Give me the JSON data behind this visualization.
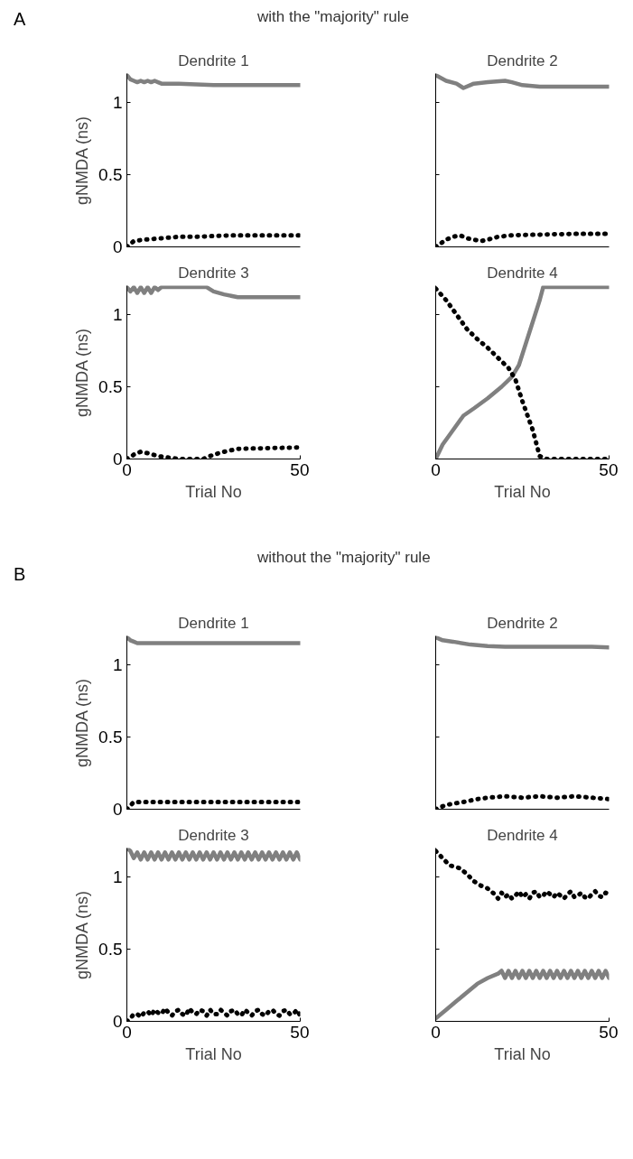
{
  "chart_data": [
    {
      "type": "line",
      "title": "Dendrite 1",
      "ylabel": "gNMDA (ns)",
      "annotations": [
        "A",
        "with the \"majority\" rule"
      ],
      "xlim": [
        0,
        50
      ],
      "ylim": [
        0,
        1.2
      ],
      "yticks": [
        0,
        0.5,
        1
      ],
      "tick_labels": "y",
      "grid": false,
      "series": [
        {
          "color": "#808080",
          "line_style": "solid",
          "x": [
            0,
            1,
            2,
            3,
            4,
            5,
            6,
            7,
            8,
            9,
            10,
            12,
            15,
            20,
            25,
            30,
            35,
            40,
            45,
            50
          ],
          "values": [
            1.19,
            1.16,
            1.15,
            1.14,
            1.15,
            1.14,
            1.15,
            1.14,
            1.15,
            1.14,
            1.13,
            1.13,
            1.13,
            1.125,
            1.12,
            1.12,
            1.12,
            1.12,
            1.12,
            1.12
          ]
        },
        {
          "color": "#000000",
          "line_style": "dotted",
          "x": [
            0,
            2,
            5,
            10,
            15,
            20,
            25,
            30,
            35,
            40,
            45,
            50
          ],
          "values": [
            0.0,
            0.04,
            0.05,
            0.06,
            0.07,
            0.07,
            0.075,
            0.08,
            0.08,
            0.08,
            0.08,
            0.08
          ]
        }
      ]
    },
    {
      "type": "line",
      "title": "Dendrite 2",
      "xlim": [
        0,
        50
      ],
      "ylim": [
        0,
        1.2
      ],
      "yticks": [
        0,
        0.5,
        1
      ],
      "tick_labels": false,
      "grid": false,
      "series": [
        {
          "color": "#808080",
          "line_style": "solid",
          "x": [
            0,
            3,
            6,
            8,
            11,
            15,
            20,
            22,
            25,
            30,
            35,
            40,
            45,
            50
          ],
          "values": [
            1.19,
            1.15,
            1.13,
            1.1,
            1.13,
            1.14,
            1.15,
            1.14,
            1.12,
            1.11,
            1.11,
            1.11,
            1.11,
            1.11
          ]
        },
        {
          "color": "#000000",
          "line_style": "dotted",
          "x": [
            0,
            3,
            5,
            7,
            9,
            11,
            13,
            15,
            18,
            22,
            30,
            40,
            50
          ],
          "values": [
            0.0,
            0.05,
            0.07,
            0.08,
            0.06,
            0.05,
            0.04,
            0.05,
            0.07,
            0.08,
            0.085,
            0.09,
            0.09
          ]
        }
      ]
    },
    {
      "type": "line",
      "title": "Dendrite 3",
      "ylabel": "gNMDA (ns)",
      "xlabel": "Trial No",
      "xlim": [
        0,
        50
      ],
      "ylim": [
        0,
        1.2
      ],
      "xticks": [
        0,
        50
      ],
      "yticks": [
        0,
        0.5,
        1
      ],
      "grid": false,
      "series": [
        {
          "color": "#808080",
          "line_style": "solid",
          "x": [
            0,
            1,
            2,
            3,
            4,
            5,
            6,
            7,
            8,
            9,
            10,
            12,
            15,
            20,
            23,
            25,
            28,
            32,
            40,
            50
          ],
          "values": [
            1.19,
            1.16,
            1.19,
            1.15,
            1.19,
            1.15,
            1.19,
            1.15,
            1.19,
            1.17,
            1.19,
            1.19,
            1.19,
            1.19,
            1.19,
            1.16,
            1.14,
            1.12,
            1.12,
            1.12
          ]
        },
        {
          "color": "#000000",
          "line_style": "dotted",
          "x": [
            0,
            2,
            4,
            6,
            9,
            12,
            15,
            22,
            25,
            28,
            32,
            40,
            50
          ],
          "values": [
            0.0,
            0.03,
            0.05,
            0.04,
            0.02,
            0.01,
            0.0,
            0.0,
            0.03,
            0.05,
            0.07,
            0.075,
            0.08
          ]
        }
      ]
    },
    {
      "type": "line",
      "title": "Dendrite 4",
      "xlabel": "Trial No",
      "xlim": [
        0,
        50
      ],
      "ylim": [
        0,
        1.2
      ],
      "xticks": [
        0,
        50
      ],
      "yticks": [
        0,
        0.5,
        1
      ],
      "tick_labels": "x",
      "grid": false,
      "series": [
        {
          "color": "#808080",
          "line_style": "solid",
          "x": [
            0,
            2,
            5,
            8,
            11,
            15,
            19,
            22,
            24,
            26,
            28,
            30,
            31,
            40,
            50
          ],
          "values": [
            0.0,
            0.1,
            0.2,
            0.3,
            0.35,
            0.42,
            0.5,
            0.57,
            0.65,
            0.8,
            0.95,
            1.1,
            1.19,
            1.19,
            1.19
          ]
        },
        {
          "color": "#000000",
          "line_style": "dotted",
          "x": [
            0,
            3,
            6,
            9,
            12,
            15,
            18,
            21,
            23,
            25,
            28,
            30,
            32,
            40,
            50
          ],
          "values": [
            1.18,
            1.1,
            1.0,
            0.9,
            0.83,
            0.77,
            0.7,
            0.63,
            0.55,
            0.4,
            0.2,
            0.02,
            0.0,
            0.0,
            0.0
          ]
        }
      ]
    },
    {
      "type": "line",
      "title": "Dendrite 1",
      "ylabel": "gNMDA (ns)",
      "annotations": [
        "B",
        "without the \"majority\" rule"
      ],
      "xlim": [
        0,
        50
      ],
      "ylim": [
        0,
        1.2
      ],
      "yticks": [
        0,
        0.5,
        1
      ],
      "tick_labels": "y",
      "grid": false,
      "series": [
        {
          "color": "#808080",
          "line_style": "solid",
          "x": [
            0,
            1,
            2,
            3,
            5,
            10,
            20,
            30,
            40,
            50
          ],
          "values": [
            1.19,
            1.17,
            1.16,
            1.15,
            1.15,
            1.15,
            1.15,
            1.15,
            1.15,
            1.15
          ]
        },
        {
          "color": "#000000",
          "line_style": "dotted",
          "x": [
            0,
            2,
            5,
            10,
            20,
            30,
            40,
            50
          ],
          "values": [
            0.0,
            0.05,
            0.05,
            0.05,
            0.05,
            0.05,
            0.05,
            0.05
          ]
        }
      ]
    },
    {
      "type": "line",
      "title": "Dendrite 2",
      "xlim": [
        0,
        50
      ],
      "ylim": [
        0,
        1.2
      ],
      "yticks": [
        0,
        0.5,
        1
      ],
      "tick_labels": false,
      "grid": false,
      "series": [
        {
          "color": "#808080",
          "line_style": "solid",
          "x": [
            0,
            2,
            5,
            10,
            15,
            20,
            25,
            30,
            35,
            40,
            45,
            50
          ],
          "values": [
            1.19,
            1.17,
            1.16,
            1.14,
            1.13,
            1.125,
            1.125,
            1.125,
            1.125,
            1.125,
            1.125,
            1.12
          ]
        },
        {
          "color": "#000000",
          "line_style": "dotted",
          "x": [
            0,
            3,
            8,
            12,
            15,
            20,
            25,
            30,
            35,
            40,
            45,
            50
          ],
          "values": [
            0.0,
            0.03,
            0.05,
            0.07,
            0.08,
            0.09,
            0.08,
            0.09,
            0.08,
            0.09,
            0.08,
            0.07
          ]
        }
      ]
    },
    {
      "type": "line",
      "title": "Dendrite 3",
      "ylabel": "gNMDA (ns)",
      "xlabel": "Trial No",
      "xlim": [
        0,
        50
      ],
      "ylim": [
        0,
        1.2
      ],
      "xticks": [
        0,
        50
      ],
      "yticks": [
        0,
        0.5,
        1
      ],
      "grid": false,
      "series": [
        {
          "color": "#808080",
          "line_style": "solid",
          "x": [
            0,
            1,
            2,
            3,
            4,
            5,
            6,
            7,
            8,
            9,
            10,
            11,
            12,
            13,
            14,
            15,
            16,
            17,
            18,
            19,
            20,
            21,
            22,
            23,
            24,
            25,
            26,
            27,
            28,
            29,
            30,
            31,
            32,
            33,
            34,
            35,
            36,
            37,
            38,
            39,
            40,
            41,
            42,
            43,
            44,
            45,
            46,
            47,
            48,
            49,
            50
          ],
          "values": [
            1.2,
            1.18,
            1.13,
            1.17,
            1.12,
            1.17,
            1.12,
            1.17,
            1.12,
            1.17,
            1.12,
            1.17,
            1.12,
            1.17,
            1.12,
            1.17,
            1.12,
            1.17,
            1.12,
            1.17,
            1.12,
            1.17,
            1.12,
            1.17,
            1.12,
            1.17,
            1.12,
            1.17,
            1.12,
            1.17,
            1.12,
            1.17,
            1.12,
            1.17,
            1.12,
            1.17,
            1.12,
            1.17,
            1.12,
            1.17,
            1.12,
            1.17,
            1.12,
            1.17,
            1.12,
            1.17,
            1.12,
            1.17,
            1.12,
            1.17,
            1.12
          ]
        },
        {
          "color": "#000000",
          "line_style": "dotted",
          "x": [
            0,
            1,
            2,
            3,
            4,
            5,
            6,
            7,
            8,
            9,
            10,
            11,
            12,
            13,
            14,
            15,
            16,
            17,
            18,
            19,
            20,
            21,
            22,
            23,
            24,
            25,
            26,
            27,
            28,
            29,
            30,
            31,
            32,
            33,
            34,
            35,
            36,
            37,
            38,
            39,
            40,
            41,
            42,
            43,
            44,
            45,
            46,
            47,
            48,
            49,
            50
          ],
          "values": [
            0.0,
            0.02,
            0.05,
            0.05,
            0.03,
            0.06,
            0.07,
            0.04,
            0.08,
            0.06,
            0.05,
            0.09,
            0.06,
            0.04,
            0.07,
            0.08,
            0.05,
            0.04,
            0.09,
            0.06,
            0.05,
            0.08,
            0.07,
            0.04,
            0.08,
            0.05,
            0.05,
            0.08,
            0.06,
            0.04,
            0.07,
            0.08,
            0.05,
            0.04,
            0.08,
            0.06,
            0.04,
            0.07,
            0.08,
            0.05,
            0.04,
            0.07,
            0.08,
            0.05,
            0.04,
            0.07,
            0.08,
            0.05,
            0.05,
            0.08,
            0.04
          ]
        }
      ]
    },
    {
      "type": "line",
      "title": "Dendrite 4",
      "xlabel": "Trial No",
      "xlim": [
        0,
        50
      ],
      "ylim": [
        0,
        1.2
      ],
      "xticks": [
        0,
        50
      ],
      "yticks": [
        0,
        0.5,
        1
      ],
      "tick_labels": "x",
      "grid": false,
      "series": [
        {
          "color": "#808080",
          "line_style": "solid",
          "x": [
            0,
            3,
            6,
            9,
            12,
            15,
            18,
            19,
            20,
            21,
            22,
            23,
            24,
            25,
            26,
            27,
            28,
            29,
            30,
            31,
            32,
            33,
            34,
            35,
            36,
            37,
            38,
            39,
            40,
            41,
            42,
            43,
            44,
            45,
            46,
            47,
            48,
            49,
            50
          ],
          "values": [
            0.02,
            0.08,
            0.14,
            0.2,
            0.26,
            0.3,
            0.33,
            0.35,
            0.3,
            0.35,
            0.3,
            0.35,
            0.3,
            0.35,
            0.3,
            0.35,
            0.3,
            0.35,
            0.3,
            0.35,
            0.3,
            0.35,
            0.3,
            0.35,
            0.3,
            0.35,
            0.3,
            0.35,
            0.3,
            0.35,
            0.3,
            0.35,
            0.3,
            0.35,
            0.3,
            0.35,
            0.3,
            0.35,
            0.3
          ]
        },
        {
          "color": "#000000",
          "line_style": "dotted",
          "x": [
            0,
            2,
            4,
            7,
            9,
            11,
            13,
            15,
            17,
            18,
            19,
            20,
            21,
            22,
            23,
            24,
            25,
            26,
            27,
            28,
            29,
            30,
            31,
            32,
            33,
            34,
            35,
            36,
            37,
            38,
            39,
            40,
            41,
            42,
            43,
            44,
            45,
            46,
            47,
            48,
            49,
            50
          ],
          "values": [
            1.18,
            1.13,
            1.08,
            1.06,
            1.02,
            0.97,
            0.94,
            0.92,
            0.88,
            0.85,
            0.89,
            0.86,
            0.88,
            0.85,
            0.87,
            0.9,
            0.86,
            0.88,
            0.85,
            0.89,
            0.9,
            0.86,
            0.87,
            0.9,
            0.88,
            0.86,
            0.89,
            0.87,
            0.85,
            0.88,
            0.9,
            0.86,
            0.87,
            0.89,
            0.86,
            0.85,
            0.88,
            0.9,
            0.87,
            0.86,
            0.89,
            0.88
          ]
        }
      ]
    }
  ]
}
